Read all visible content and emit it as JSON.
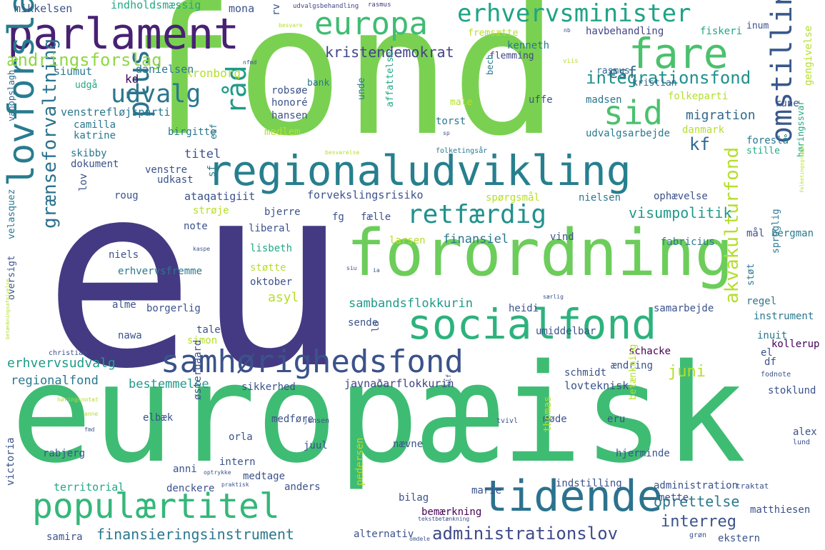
{
  "words": [
    {
      "text": "fond",
      "color": "#7ad151"
    },
    {
      "text": "eu",
      "color": "#443a83"
    },
    {
      "text": "europæisk",
      "color": "#3fbc73"
    },
    {
      "text": "regionaludvikling",
      "color": "#277f8e"
    },
    {
      "text": "forordning",
      "color": "#6ccd5a"
    },
    {
      "text": "parlament",
      "color": "#482173"
    },
    {
      "text": "europa",
      "color": "#3fbc73"
    },
    {
      "text": "erhvervsminister",
      "color": "#20a386"
    },
    {
      "text": "fare",
      "color": "#4ac16d"
    },
    {
      "text": "socialfond",
      "color": "#2db27d"
    },
    {
      "text": "samhørighedsfond",
      "color": "#3b528b"
    },
    {
      "text": "populærtitel",
      "color": "#35b779"
    },
    {
      "text": "tidende",
      "color": "#2c728e"
    },
    {
      "text": "lovforslag",
      "color": "#287c8e"
    },
    {
      "text": "udvalg",
      "color": "#2a788e"
    },
    {
      "text": "sid",
      "color": "#4ac16d"
    },
    {
      "text": "omstilling",
      "color": "#38588c"
    },
    {
      "text": "retfærdig",
      "color": "#21918c"
    },
    {
      "text": "plus",
      "color": "#2c728e"
    },
    {
      "text": "råd",
      "color": "#1f9a8a"
    },
    {
      "text": "grænseforvaltning",
      "color": "#2c728e"
    },
    {
      "text": "ændringsforslag",
      "color": "#8fd744"
    },
    {
      "text": "integrationsfond",
      "color": "#21918c"
    },
    {
      "text": "kristendemokrat",
      "color": "#414487"
    },
    {
      "text": "administrationslov",
      "color": "#3e4a89"
    },
    {
      "text": "akvakulturfond",
      "color": "#b5de2b"
    },
    {
      "text": "interreg",
      "color": "#3b528b"
    },
    {
      "text": "juni",
      "color": "#b5de2b"
    },
    {
      "text": "visumpolitik",
      "color": "#1f9a8a"
    },
    {
      "text": "esf",
      "color": "#31688e"
    },
    {
      "text": "kf",
      "color": "#31688e"
    },
    {
      "text": "finansieringsinstrument",
      "color": "#2a788e"
    },
    {
      "text": "oprettelse",
      "color": "#2a788e"
    },
    {
      "text": "bestemmelse",
      "color": "#1f9a8a"
    },
    {
      "text": "erhvervsudvalg",
      "color": "#1f9a8a"
    },
    {
      "text": "regionalfond",
      "color": "#2a788e"
    },
    {
      "text": "sambandsflokkurin",
      "color": "#1f9a8a"
    },
    {
      "text": "asyl",
      "color": "#b5de2b"
    },
    {
      "text": "migration",
      "color": "#31688e"
    },
    {
      "text": "titel",
      "color": "#3b528b"
    },
    {
      "text": "territorial",
      "color": "#22a884"
    },
    {
      "text": "finansiel",
      "color": "#2a788e"
    },
    {
      "text": "lovteknisk",
      "color": "#3b528b"
    },
    {
      "text": "javnaðarflokkurin",
      "color": "#414487"
    },
    {
      "text": "siumut",
      "color": "#2a788e"
    },
    {
      "text": "kd",
      "color": "#440154"
    },
    {
      "text": "danielsen",
      "color": "#2a788e"
    },
    {
      "text": "kronborg",
      "color": "#b5de2b"
    },
    {
      "text": "mikkelsen",
      "color": "#3b528b"
    },
    {
      "text": "indholdsmæssig",
      "color": "#22a884"
    },
    {
      "text": "mona",
      "color": "#3b528b"
    },
    {
      "text": "rv",
      "color": "#3b528b"
    },
    {
      "text": "udvalgsbehandling",
      "color": "#414487"
    },
    {
      "text": "rasmus",
      "color": "#46337e"
    },
    {
      "text": "besvare",
      "color": "#b5de2b"
    },
    {
      "text": "hav",
      "color": "#414487"
    },
    {
      "text": "behandling",
      "color": "#414487"
    },
    {
      "text": "inum",
      "color": "#3b528b"
    },
    {
      "text": "fiskeri",
      "color": "#22a884"
    },
    {
      "text": "fremsætte",
      "color": "#b5de2b"
    },
    {
      "text": "kenneth",
      "color": "#2a788e"
    },
    {
      "text": "flemming",
      "color": "#414487"
    },
    {
      "text": "kristian",
      "color": "#31688e"
    },
    {
      "text": "rasmus",
      "color": "#31688e"
    },
    {
      "text": "bank",
      "color": "#2a788e"
    },
    {
      "text": "bech",
      "color": "#2a788e"
    },
    {
      "text": "madsen",
      "color": "#2a788e"
    },
    {
      "text": "folkeparti",
      "color": "#b5de2b"
    },
    {
      "text": "gengivelse",
      "color": "#b5de2b"
    },
    {
      "text": "udgå",
      "color": "#22a884"
    },
    {
      "text": "robsøe",
      "color": "#3b528b"
    },
    {
      "text": "honoré",
      "color": "#3b528b"
    },
    {
      "text": "hansen",
      "color": "#3b528b"
    },
    {
      "text": "unde",
      "color": "#2a788e"
    },
    {
      "text": "affattelse",
      "color": "#22a884"
    },
    {
      "text": "male",
      "color": "#b5de2b"
    },
    {
      "text": "uffe",
      "color": "#3b528b"
    },
    {
      "text": "torst",
      "color": "#2a788e"
    },
    {
      "text": "medlem",
      "color": "#b5de2b"
    },
    {
      "text": "venstrefløjsparti",
      "color": "#2a788e"
    },
    {
      "text": "camilla",
      "color": "#2a788e"
    },
    {
      "text": "katrine",
      "color": "#2a788e"
    },
    {
      "text": "birgitte",
      "color": "#2a788e"
    },
    {
      "text": "udvalgsarbejde",
      "color": "#2a788e"
    },
    {
      "text": "danmark",
      "color": "#b5de2b"
    },
    {
      "text": "foreslå",
      "color": "#2a788e"
    },
    {
      "text": "stille",
      "color": "#22a884"
    },
    {
      "text": "høringssvar",
      "color": "#22a884"
    },
    {
      "text": "vanopslagh",
      "color": "#31688e"
    },
    {
      "text": "skibby",
      "color": "#2a788e"
    },
    {
      "text": "dokument",
      "color": "#3b528b"
    },
    {
      "text": "venstre",
      "color": "#3b528b"
    },
    {
      "text": "udkast",
      "color": "#3b528b"
    },
    {
      "text": "euf",
      "color": "#2a788e"
    },
    {
      "text": "folketingsår",
      "color": "#2a788e"
    },
    {
      "text": "besvarelse",
      "color": "#b5de2b"
    },
    {
      "text": "ataqatigiit",
      "color": "#3b528b"
    },
    {
      "text": "forvekslingsrisiko",
      "color": "#3b528b"
    },
    {
      "text": "spørgsmål",
      "color": "#b5de2b"
    },
    {
      "text": "nielsen",
      "color": "#2a788e"
    },
    {
      "text": "ophævelse",
      "color": "#3b528b"
    },
    {
      "text": "roug",
      "color": "#3b528b"
    },
    {
      "text": "lov",
      "color": "#3b528b"
    },
    {
      "text": "sf",
      "color": "#2a788e"
    },
    {
      "text": "strøje",
      "color": "#b5de2b"
    },
    {
      "text": "bjerre",
      "color": "#3b528b"
    },
    {
      "text": "fg",
      "color": "#3b528b"
    },
    {
      "text": "fælle",
      "color": "#3b528b"
    },
    {
      "text": "liberal",
      "color": "#3b528b"
    },
    {
      "text": "note",
      "color": "#3b528b"
    },
    {
      "text": "lisbeth",
      "color": "#22a884"
    },
    {
      "text": "larsen",
      "color": "#b5de2b"
    },
    {
      "text": "vind",
      "color": "#3b528b"
    },
    {
      "text": "fabricius",
      "color": "#2a788e"
    },
    {
      "text": "mål",
      "color": "#3b528b"
    },
    {
      "text": "bergman",
      "color": "#2a788e"
    },
    {
      "text": "niels",
      "color": "#3b528b"
    },
    {
      "text": "kaspe",
      "color": "#3b528b"
    },
    {
      "text": "støtte",
      "color": "#b5de2b"
    },
    {
      "text": "oktober",
      "color": "#3b528b"
    },
    {
      "text": "sproglig",
      "color": "#2a788e"
    },
    {
      "text": "erhvervsfremme",
      "color": "#2a788e"
    },
    {
      "text": "alme",
      "color": "#3b528b"
    },
    {
      "text": "borgerlig",
      "color": "#3b528b"
    },
    {
      "text": "heidi",
      "color": "#3b528b"
    },
    {
      "text": "støt",
      "color": "#2a788e"
    },
    {
      "text": "regel",
      "color": "#2a788e"
    },
    {
      "text": "samarbejde",
      "color": "#3b528b"
    },
    {
      "text": "instrument",
      "color": "#2a788e"
    },
    {
      "text": "inuit",
      "color": "#2a788e"
    },
    {
      "text": "oversigt",
      "color": "#3b528b"
    },
    {
      "text": "velasquez",
      "color": "#2a788e"
    },
    {
      "text": "tale",
      "color": "#3b528b"
    },
    {
      "text": "simon",
      "color": "#b5de2b"
    },
    {
      "text": "sende",
      "color": "#3b528b"
    },
    {
      "text": "la",
      "color": "#3b528b"
    },
    {
      "text": "umiddelbar",
      "color": "#3b528b"
    },
    {
      "text": "schacke",
      "color": "#440154"
    },
    {
      "text": "el",
      "color": "#3b528b"
    },
    {
      "text": "kollerup",
      "color": "#440154"
    },
    {
      "text": "nawa",
      "color": "#3b528b"
    },
    {
      "text": "christian",
      "color": "#3b528b"
    },
    {
      "text": "df",
      "color": "#3b528b"
    },
    {
      "text": "ændring",
      "color": "#3b528b"
    },
    {
      "text": "fodnote",
      "color": "#3b528b"
    },
    {
      "text": "schmidt",
      "color": "#3b528b"
    },
    {
      "text": "sikkerhed",
      "color": "#3b528b"
    },
    {
      "text": "stoklund",
      "color": "#3b528b"
    },
    {
      "text": "medføre",
      "color": "#3b528b"
    },
    {
      "text": "elbæk",
      "color": "#3b528b"
    },
    {
      "text": "østergaard",
      "color": "#3b528b"
    },
    {
      "text": "jensen",
      "color": "#3b528b"
    },
    {
      "text": "møde",
      "color": "#3b528b"
    },
    {
      "text": "tvivl",
      "color": "#3b528b"
    },
    {
      "text": "eru",
      "color": "#3b528b"
    },
    {
      "text": "betænkning",
      "color": "#b5de2b"
    },
    {
      "text": "alex",
      "color": "#3b528b"
    },
    {
      "text": "lund",
      "color": "#3b528b"
    },
    {
      "text": "orla",
      "color": "#3b528b"
    },
    {
      "text": "nævne",
      "color": "#3b528b"
    },
    {
      "text": "rabjerg",
      "color": "#3b528b"
    },
    {
      "text": "juul",
      "color": "#3b528b"
    },
    {
      "text": "hjerminde",
      "color": "#3b528b"
    },
    {
      "text": "anni",
      "color": "#3b528b"
    },
    {
      "text": "intern",
      "color": "#3b528b"
    },
    {
      "text": "thomas",
      "color": "#b5de2b"
    },
    {
      "text": "medtage",
      "color": "#3b528b"
    },
    {
      "text": "denckere",
      "color": "#3b528b"
    },
    {
      "text": "anders",
      "color": "#3b528b"
    },
    {
      "text": "indstilling",
      "color": "#3b528b"
    },
    {
      "text": "administration",
      "color": "#3b528b"
    },
    {
      "text": "traktat",
      "color": "#3b528b"
    },
    {
      "text": "pedersen",
      "color": "#b5de2b"
    },
    {
      "text": "marie",
      "color": "#3b528b"
    },
    {
      "text": "mette",
      "color": "#3b528b"
    },
    {
      "text": "bilag",
      "color": "#3b528b"
    },
    {
      "text": "bemærkning",
      "color": "#440154"
    },
    {
      "text": "matthiesen",
      "color": "#3b528b"
    },
    {
      "text": "victoria",
      "color": "#3b528b"
    },
    {
      "text": "samira",
      "color": "#3b528b"
    },
    {
      "text": "alternativ",
      "color": "#3b528b"
    },
    {
      "text": "ekstern",
      "color": "#3b528b"
    },
    {
      "text": "grøn",
      "color": "#3b528b"
    },
    {
      "text": "rune",
      "color": "#3b528b"
    },
    {
      "text": "nfmd",
      "color": "#3b528b"
    },
    {
      "text": "viis",
      "color": "#b5de2b"
    },
    {
      "text": "sp",
      "color": "#3b528b"
    },
    {
      "text": "nb",
      "color": "#3b528b"
    },
    {
      "text": "siu",
      "color": "#3b528b"
    },
    {
      "text": "ia",
      "color": "#3b528b"
    },
    {
      "text": "særlig",
      "color": "#3b528b"
    },
    {
      "text": "optrykke",
      "color": "#3b528b"
    },
    {
      "text": "praktisk",
      "color": "#3b528b"
    },
    {
      "text": "folketingsgruppe",
      "color": "#b5de2b"
    },
    {
      "text": "betænkningsafgivelse",
      "color": "#b5de2b"
    },
    {
      "text": "høringsnotat",
      "color": "#b5de2b"
    },
    {
      "text": "anne",
      "color": "#b5de2b"
    },
    {
      "text": "fmd",
      "color": "#3b528b"
    },
    {
      "text": "ulf",
      "color": "#3b528b"
    },
    {
      "text": "tekstbetænkning",
      "color": "#3b528b"
    },
    {
      "text": "omdele",
      "color": "#3b528b"
    }
  ]
}
